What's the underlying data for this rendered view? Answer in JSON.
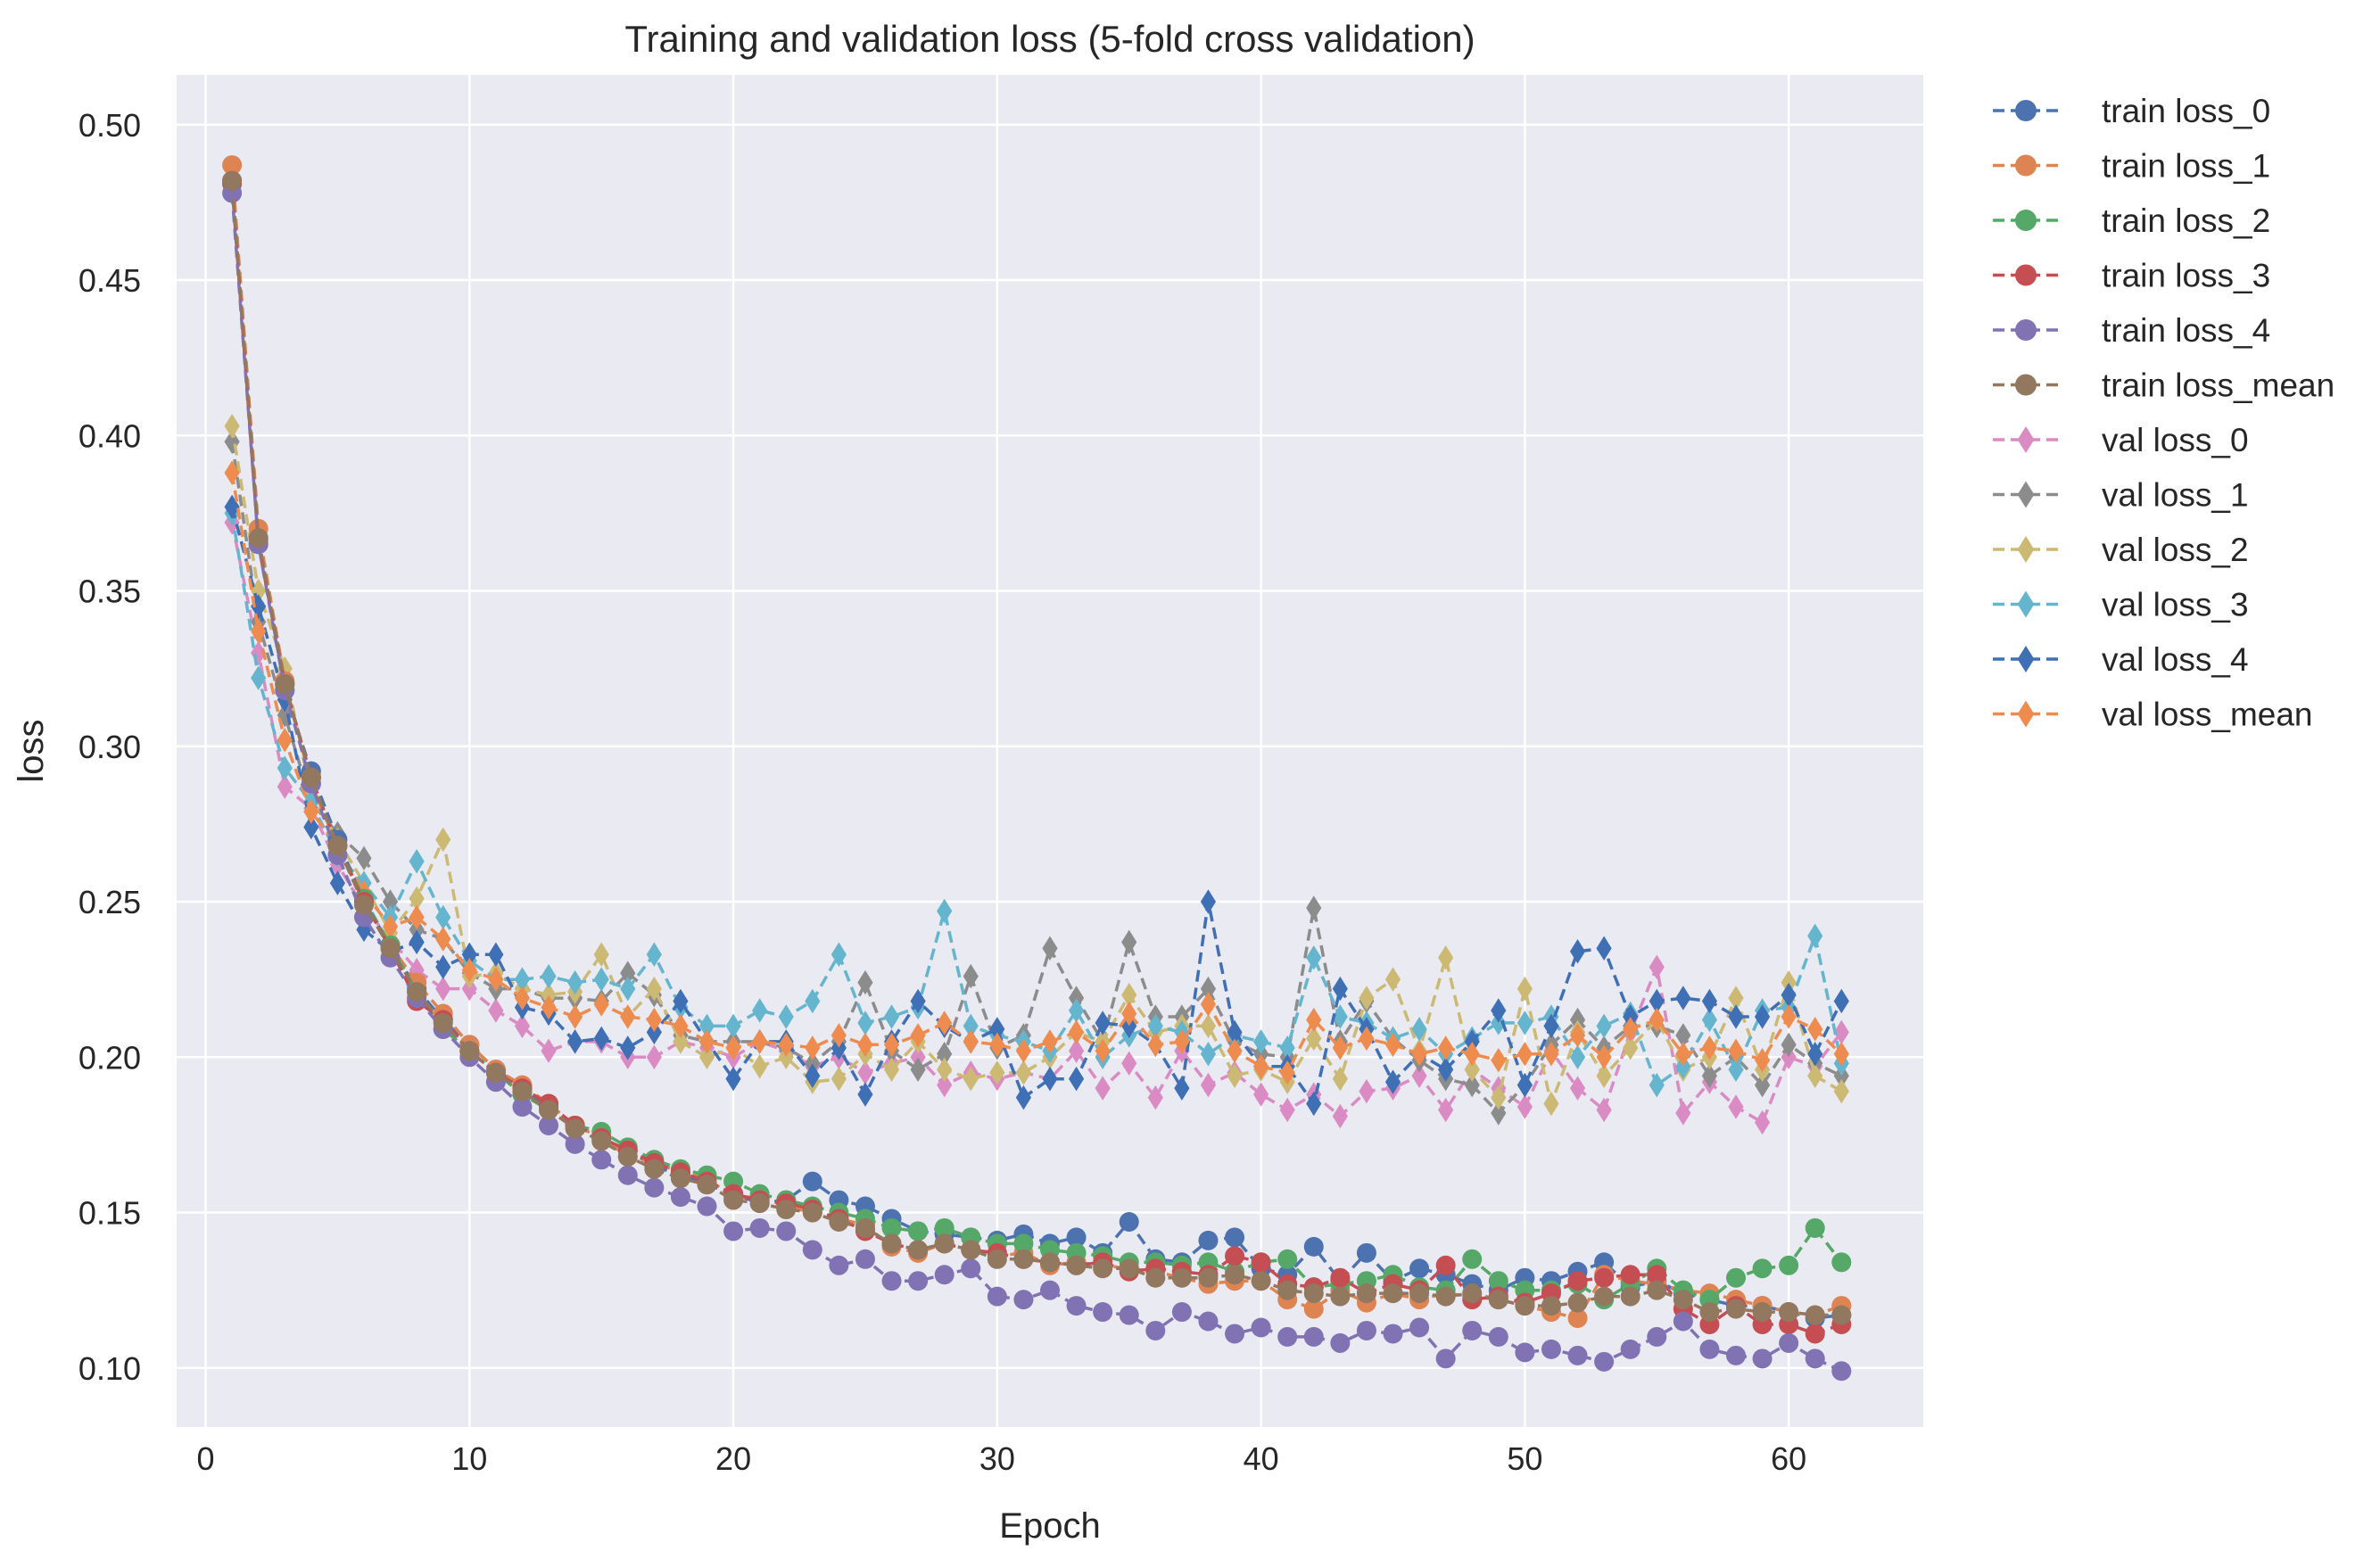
{
  "chart_data": {
    "type": "line",
    "title": "Training and validation loss (5-fold cross validation)",
    "xlabel": "Epoch",
    "ylabel": "loss",
    "xlim": [
      -1.1,
      65.1
    ],
    "ylim": [
      0.081,
      0.516
    ],
    "xticks": [
      0,
      10,
      20,
      30,
      40,
      50,
      60
    ],
    "yticks": [
      0.1,
      0.15,
      0.2,
      0.25,
      0.3,
      0.35,
      0.4,
      0.45,
      0.5
    ],
    "ytick_labels": [
      "0.10",
      "0.15",
      "0.20",
      "0.25",
      "0.30",
      "0.35",
      "0.40",
      "0.45",
      "0.50"
    ],
    "grid": true,
    "legend_position": "outside-right",
    "x": [
      1,
      2,
      3,
      4,
      5,
      6,
      7,
      8,
      9,
      10,
      11,
      12,
      13,
      14,
      15,
      16,
      17,
      18,
      19,
      20,
      21,
      22,
      23,
      24,
      25,
      26,
      27,
      28,
      29,
      30,
      31,
      32,
      33,
      34,
      35,
      36,
      37,
      38,
      39,
      40,
      41,
      42,
      43,
      44,
      45,
      46,
      47,
      48,
      49,
      50,
      51,
      52,
      53,
      54,
      55,
      56,
      57,
      58,
      59,
      60,
      61,
      62
    ],
    "series": [
      {
        "name": "train loss_0",
        "color": "#4C72B0",
        "marker": "circle",
        "values": [
          0.482,
          0.367,
          0.318,
          0.292,
          0.27,
          0.25,
          0.236,
          0.222,
          0.212,
          0.204,
          0.196,
          0.19,
          0.184,
          0.178,
          0.174,
          0.17,
          0.165,
          0.162,
          0.159,
          0.156,
          0.153,
          0.154,
          0.16,
          0.154,
          0.152,
          0.148,
          0.144,
          0.143,
          0.142,
          0.141,
          0.143,
          0.14,
          0.142,
          0.137,
          0.147,
          0.135,
          0.134,
          0.141,
          0.142,
          0.132,
          0.13,
          0.139,
          0.128,
          0.137,
          0.128,
          0.132,
          0.13,
          0.127,
          0.125,
          0.129,
          0.128,
          0.131,
          0.134,
          0.126,
          0.128,
          0.124,
          0.122,
          0.12,
          0.12,
          0.118,
          0.116,
          0.117
        ]
      },
      {
        "name": "train loss_1",
        "color": "#DD8452",
        "marker": "circle",
        "values": [
          0.487,
          0.37,
          0.321,
          0.288,
          0.268,
          0.25,
          0.236,
          0.224,
          0.214,
          0.204,
          0.196,
          0.191,
          0.185,
          0.178,
          0.174,
          0.168,
          0.166,
          0.163,
          0.161,
          0.155,
          0.155,
          0.152,
          0.15,
          0.148,
          0.146,
          0.139,
          0.137,
          0.14,
          0.138,
          0.136,
          0.137,
          0.133,
          0.134,
          0.133,
          0.132,
          0.131,
          0.129,
          0.127,
          0.128,
          0.128,
          0.122,
          0.119,
          0.125,
          0.121,
          0.124,
          0.122,
          0.124,
          0.123,
          0.122,
          0.12,
          0.118,
          0.116,
          0.13,
          0.128,
          0.127,
          0.125,
          0.124,
          0.122,
          0.12,
          0.118,
          0.117,
          0.12
        ]
      },
      {
        "name": "train loss_2",
        "color": "#55A868",
        "marker": "circle",
        "values": [
          0.481,
          0.366,
          0.32,
          0.29,
          0.268,
          0.251,
          0.236,
          0.221,
          0.209,
          0.202,
          0.195,
          0.188,
          0.183,
          0.178,
          0.176,
          0.171,
          0.167,
          0.164,
          0.162,
          0.16,
          0.156,
          0.154,
          0.152,
          0.15,
          0.148,
          0.145,
          0.144,
          0.145,
          0.142,
          0.14,
          0.14,
          0.138,
          0.137,
          0.136,
          0.134,
          0.134,
          0.133,
          0.134,
          0.131,
          0.134,
          0.135,
          0.126,
          0.127,
          0.128,
          0.13,
          0.126,
          0.125,
          0.135,
          0.128,
          0.125,
          0.125,
          0.127,
          0.122,
          0.127,
          0.132,
          0.125,
          0.122,
          0.129,
          0.132,
          0.133,
          0.145,
          0.134
        ]
      },
      {
        "name": "train loss_3",
        "color": "#C44E52",
        "marker": "circle",
        "values": [
          0.481,
          0.365,
          0.32,
          0.29,
          0.268,
          0.25,
          0.235,
          0.218,
          0.212,
          0.202,
          0.195,
          0.19,
          0.185,
          0.178,
          0.174,
          0.17,
          0.166,
          0.163,
          0.16,
          0.156,
          0.154,
          0.153,
          0.151,
          0.148,
          0.144,
          0.14,
          0.138,
          0.14,
          0.138,
          0.137,
          0.135,
          0.134,
          0.133,
          0.134,
          0.131,
          0.132,
          0.131,
          0.13,
          0.136,
          0.134,
          0.127,
          0.126,
          0.129,
          0.124,
          0.127,
          0.125,
          0.133,
          0.122,
          0.123,
          0.121,
          0.124,
          0.128,
          0.129,
          0.13,
          0.13,
          0.119,
          0.114,
          0.12,
          0.114,
          0.114,
          0.111,
          0.114
        ]
      },
      {
        "name": "train loss_4",
        "color": "#8172B3",
        "marker": "circle",
        "values": [
          0.478,
          0.365,
          0.318,
          0.288,
          0.265,
          0.245,
          0.232,
          0.219,
          0.209,
          0.2,
          0.192,
          0.184,
          0.178,
          0.172,
          0.167,
          0.162,
          0.158,
          0.155,
          0.152,
          0.144,
          0.145,
          0.144,
          0.138,
          0.133,
          0.135,
          0.128,
          0.128,
          0.13,
          0.132,
          0.123,
          0.122,
          0.125,
          0.12,
          0.118,
          0.117,
          0.112,
          0.118,
          0.115,
          0.111,
          0.113,
          0.11,
          0.11,
          0.108,
          0.112,
          0.111,
          0.113,
          0.103,
          0.112,
          0.11,
          0.105,
          0.106,
          0.104,
          0.102,
          0.106,
          0.11,
          0.115,
          0.106,
          0.104,
          0.103,
          0.108,
          0.103,
          0.099
        ]
      },
      {
        "name": "train loss_mean",
        "color": "#937860",
        "marker": "circle",
        "values": [
          0.482,
          0.367,
          0.32,
          0.29,
          0.268,
          0.249,
          0.235,
          0.221,
          0.211,
          0.202,
          0.195,
          0.189,
          0.183,
          0.177,
          0.173,
          0.168,
          0.164,
          0.161,
          0.159,
          0.154,
          0.153,
          0.151,
          0.15,
          0.147,
          0.145,
          0.14,
          0.138,
          0.14,
          0.138,
          0.135,
          0.135,
          0.134,
          0.133,
          0.132,
          0.132,
          0.129,
          0.129,
          0.129,
          0.13,
          0.128,
          0.125,
          0.124,
          0.123,
          0.124,
          0.124,
          0.124,
          0.123,
          0.124,
          0.122,
          0.12,
          0.12,
          0.121,
          0.123,
          0.123,
          0.125,
          0.122,
          0.118,
          0.119,
          0.118,
          0.118,
          0.117,
          0.117
        ]
      }
    ],
    "val_series": [
      {
        "name": "val loss_0",
        "color": "#DA8BC3",
        "marker": "diamond",
        "values": [
          0.372,
          0.33,
          0.287,
          0.28,
          0.262,
          0.248,
          0.238,
          0.228,
          0.222,
          0.222,
          0.215,
          0.21,
          0.202,
          0.205,
          0.205,
          0.2,
          0.2,
          0.205,
          0.203,
          0.2,
          0.205,
          0.202,
          0.197,
          0.2,
          0.195,
          0.198,
          0.2,
          0.191,
          0.195,
          0.193,
          0.195,
          0.193,
          0.202,
          0.19,
          0.198,
          0.187,
          0.202,
          0.191,
          0.195,
          0.188,
          0.183,
          0.188,
          0.181,
          0.189,
          0.19,
          0.194,
          0.183,
          0.196,
          0.19,
          0.184,
          0.202,
          0.19,
          0.183,
          0.208,
          0.229,
          0.182,
          0.192,
          0.184,
          0.179,
          0.2,
          0.197,
          0.208
        ]
      },
      {
        "name": "val loss_1",
        "color": "#8C8C8C",
        "marker": "diamond",
        "values": [
          0.398,
          0.34,
          0.31,
          0.282,
          0.272,
          0.264,
          0.25,
          0.241,
          0.238,
          0.227,
          0.222,
          0.222,
          0.219,
          0.219,
          0.218,
          0.227,
          0.22,
          0.207,
          0.205,
          0.205,
          0.205,
          0.203,
          0.198,
          0.205,
          0.224,
          0.202,
          0.196,
          0.201,
          0.226,
          0.203,
          0.207,
          0.235,
          0.219,
          0.205,
          0.237,
          0.213,
          0.213,
          0.222,
          0.205,
          0.201,
          0.2,
          0.248,
          0.205,
          0.218,
          0.206,
          0.199,
          0.193,
          0.191,
          0.182,
          0.191,
          0.204,
          0.212,
          0.203,
          0.21,
          0.21,
          0.207,
          0.194,
          0.2,
          0.191,
          0.204,
          0.198,
          0.194
        ]
      },
      {
        "name": "val loss_2",
        "color": "#CCB974",
        "marker": "diamond",
        "values": [
          0.403,
          0.35,
          0.325,
          0.284,
          0.27,
          0.256,
          0.24,
          0.251,
          0.27,
          0.226,
          0.227,
          0.222,
          0.22,
          0.221,
          0.233,
          0.213,
          0.222,
          0.205,
          0.2,
          0.203,
          0.197,
          0.2,
          0.192,
          0.193,
          0.201,
          0.196,
          0.205,
          0.196,
          0.193,
          0.195,
          0.195,
          0.2,
          0.208,
          0.205,
          0.22,
          0.208,
          0.21,
          0.21,
          0.194,
          0.196,
          0.192,
          0.206,
          0.193,
          0.219,
          0.225,
          0.202,
          0.232,
          0.196,
          0.187,
          0.222,
          0.185,
          0.208,
          0.194,
          0.203,
          0.212,
          0.196,
          0.2,
          0.219,
          0.196,
          0.224,
          0.194,
          0.189
        ]
      },
      {
        "name": "val loss_3",
        "color": "#64B5CD",
        "marker": "diamond",
        "values": [
          0.375,
          0.322,
          0.293,
          0.282,
          0.265,
          0.256,
          0.245,
          0.263,
          0.245,
          0.231,
          0.225,
          0.225,
          0.226,
          0.224,
          0.225,
          0.222,
          0.233,
          0.216,
          0.21,
          0.21,
          0.215,
          0.213,
          0.218,
          0.233,
          0.211,
          0.213,
          0.216,
          0.247,
          0.21,
          0.207,
          0.205,
          0.202,
          0.215,
          0.2,
          0.207,
          0.21,
          0.208,
          0.201,
          0.207,
          0.205,
          0.203,
          0.232,
          0.213,
          0.211,
          0.206,
          0.209,
          0.201,
          0.206,
          0.211,
          0.211,
          0.213,
          0.2,
          0.21,
          0.214,
          0.191,
          0.197,
          0.212,
          0.196,
          0.215,
          0.216,
          0.239,
          0.198
        ]
      },
      {
        "name": "val loss_4",
        "color": "#3F6FB5",
        "marker": "diamond",
        "values": [
          0.377,
          0.345,
          0.315,
          0.274,
          0.256,
          0.241,
          0.234,
          0.237,
          0.229,
          0.233,
          0.233,
          0.216,
          0.214,
          0.205,
          0.206,
          0.203,
          0.208,
          0.218,
          0.205,
          0.193,
          0.205,
          0.205,
          0.194,
          0.203,
          0.188,
          0.205,
          0.218,
          0.21,
          0.205,
          0.209,
          0.187,
          0.193,
          0.193,
          0.211,
          0.21,
          0.204,
          0.19,
          0.25,
          0.208,
          0.197,
          0.197,
          0.185,
          0.222,
          0.209,
          0.192,
          0.201,
          0.196,
          0.205,
          0.215,
          0.191,
          0.21,
          0.234,
          0.235,
          0.213,
          0.218,
          0.219,
          0.218,
          0.213,
          0.213,
          0.22,
          0.201,
          0.218
        ]
      },
      {
        "name": "val loss_mean",
        "color": "#EE8C4F",
        "marker": "diamond",
        "values": [
          0.388,
          0.337,
          0.302,
          0.279,
          0.268,
          0.253,
          0.242,
          0.245,
          0.238,
          0.228,
          0.225,
          0.219,
          0.216,
          0.213,
          0.217,
          0.213,
          0.212,
          0.21,
          0.205,
          0.203,
          0.205,
          0.204,
          0.203,
          0.207,
          0.204,
          0.204,
          0.207,
          0.211,
          0.205,
          0.204,
          0.202,
          0.205,
          0.208,
          0.202,
          0.214,
          0.204,
          0.205,
          0.217,
          0.202,
          0.197,
          0.195,
          0.212,
          0.203,
          0.206,
          0.204,
          0.201,
          0.203,
          0.201,
          0.199,
          0.201,
          0.201,
          0.207,
          0.2,
          0.209,
          0.212,
          0.201,
          0.203,
          0.202,
          0.199,
          0.213,
          0.209,
          0.201
        ]
      }
    ]
  }
}
